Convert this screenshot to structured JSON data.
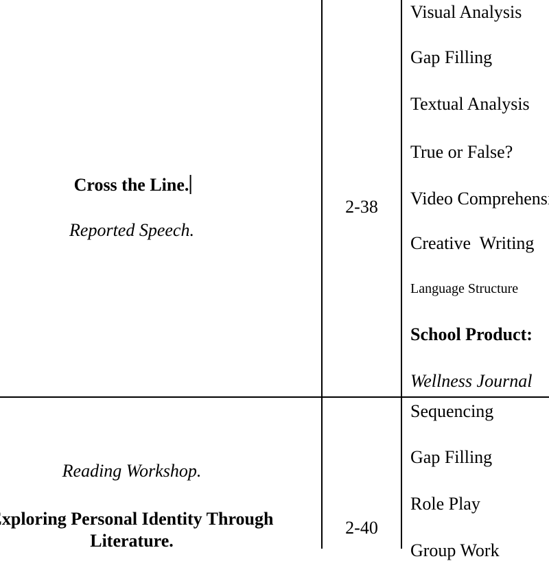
{
  "rows": [
    {
      "title": "Cross the Line.",
      "subtitle": "Reported Speech.",
      "pages": "2-38",
      "activities": [
        "Visual Analysis",
        "Gap Filling",
        "Textual Analysis",
        "True or False?",
        "Video Comprehension",
        "Creative  Writing",
        "Language Structure"
      ],
      "product_label": "School Product:",
      "product": "Wellness Journal"
    },
    {
      "subtitle": "Reading Workshop.",
      "title_line1": "Exploring Personal Identity Through",
      "title_line2": "Literature.",
      "pages": "2-40",
      "activities": [
        "Sequencing",
        "Gap Filling",
        "Role Play",
        "Group Work"
      ]
    }
  ]
}
